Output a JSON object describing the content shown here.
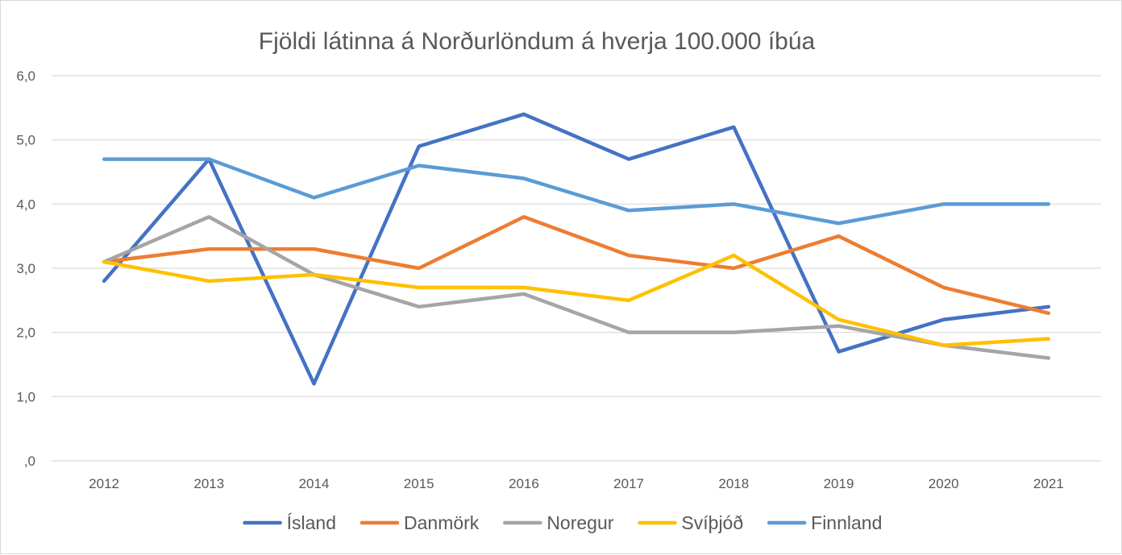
{
  "chart_data": {
    "type": "line",
    "title": "Fjöldi látinna á Norðurlöndum á hverja 100.000 íbúa",
    "xlabel": "",
    "ylabel": "",
    "categories": [
      "2012",
      "2013",
      "2014",
      "2015",
      "2016",
      "2017",
      "2018",
      "2019",
      "2020",
      "2021"
    ],
    "ylim": [
      0,
      6
    ],
    "yticks": [
      0,
      1,
      2,
      3,
      4,
      5,
      6
    ],
    "ytick_labels": [
      ",0",
      "1,0",
      "2,0",
      "3,0",
      "4,0",
      "5,0",
      "6,0"
    ],
    "grid": true,
    "legend_position": "bottom",
    "series": [
      {
        "name": "Ísland",
        "color": "#4472C4",
        "values": [
          2.8,
          4.7,
          1.2,
          4.9,
          5.4,
          4.7,
          5.2,
          1.7,
          2.2,
          2.4
        ]
      },
      {
        "name": "Danmörk",
        "color": "#ED7D31",
        "values": [
          3.1,
          3.3,
          3.3,
          3.0,
          3.8,
          3.2,
          3.0,
          3.5,
          2.7,
          2.3
        ]
      },
      {
        "name": "Noregur",
        "color": "#A5A5A5",
        "values": [
          3.1,
          3.8,
          2.9,
          2.4,
          2.6,
          2.0,
          2.0,
          2.1,
          1.8,
          1.6
        ]
      },
      {
        "name": "Svíþjóð",
        "color": "#FFC000",
        "values": [
          3.1,
          2.8,
          2.9,
          2.7,
          2.7,
          2.5,
          3.2,
          2.2,
          1.8,
          1.9
        ]
      },
      {
        "name": "Finnland",
        "color": "#5B9BD5",
        "values": [
          4.7,
          4.7,
          4.1,
          4.6,
          4.4,
          3.9,
          4.0,
          3.7,
          4.0,
          4.0
        ]
      }
    ]
  }
}
